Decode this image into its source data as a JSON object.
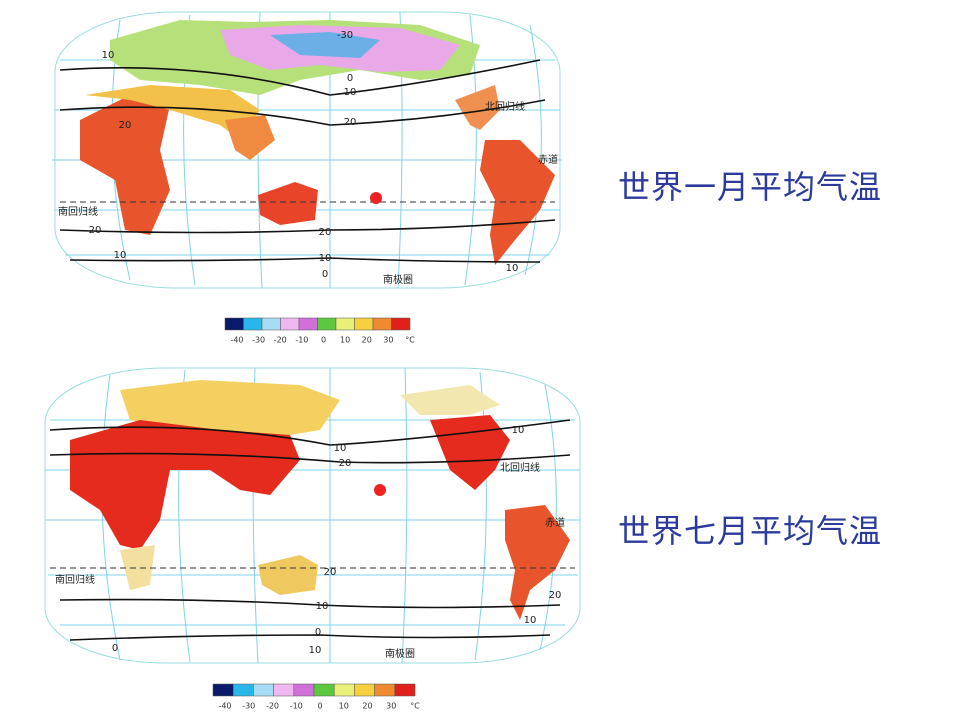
{
  "maps": [
    {
      "caption": "世界一月平均气温",
      "labels": [
        "-30",
        "0",
        "10",
        "20",
        "北回归线",
        "赤道",
        "南回归线",
        "20",
        "10",
        "20",
        "10",
        "0",
        "10",
        "南极圈",
        "20",
        "10"
      ],
      "legend": [
        "-40",
        "-30",
        "-20",
        "-10",
        "0",
        "10",
        "20",
        "30",
        "°C"
      ]
    },
    {
      "caption": "世界七月平均气温",
      "labels": [
        "10",
        "20",
        "北回归线",
        "赤道",
        "南回归线",
        "20",
        "10",
        "0",
        "0",
        "10",
        "南极圈",
        "10",
        "20",
        "10"
      ],
      "legend": [
        "-40",
        "-30",
        "-20",
        "-10",
        "0",
        "10",
        "20",
        "30",
        "°C"
      ]
    }
  ]
}
